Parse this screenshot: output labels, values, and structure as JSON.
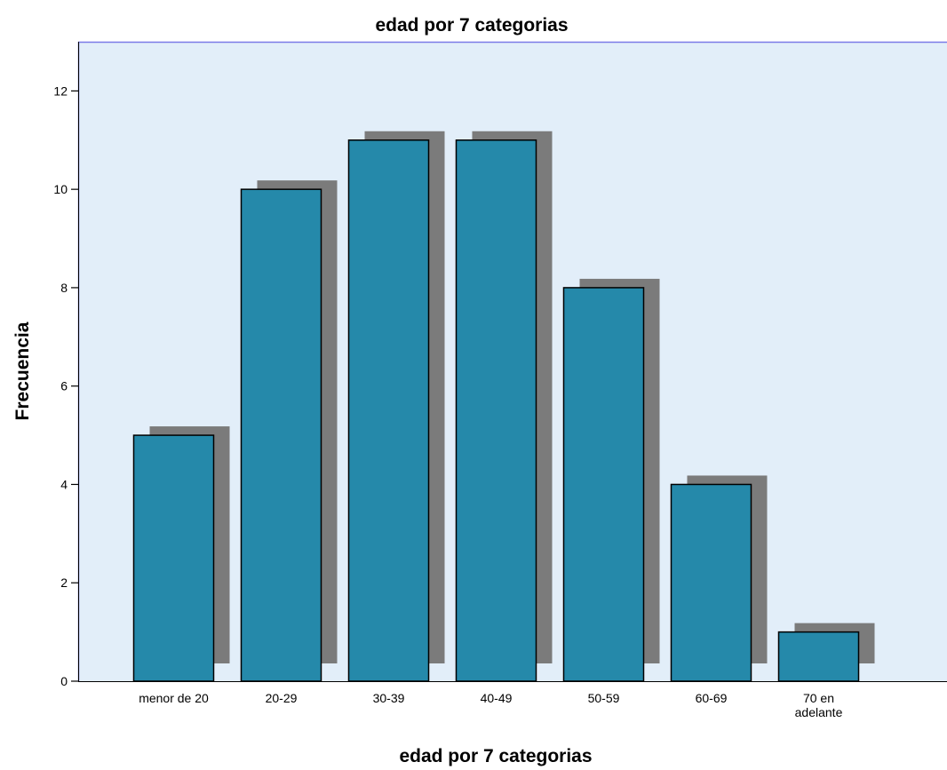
{
  "chart_data": {
    "type": "bar",
    "title": "edad por 7 categorias",
    "xlabel": "edad por 7 categorias",
    "ylabel": "Frecuencia",
    "categories": [
      "menor de 20",
      "20-29",
      "30-39",
      "40-49",
      "50-59",
      "60-69",
      "70 en adelante"
    ],
    "category_lines": [
      [
        "menor de 20"
      ],
      [
        "20-29"
      ],
      [
        "30-39"
      ],
      [
        "40-49"
      ],
      [
        "50-59"
      ],
      [
        "60-69"
      ],
      [
        "70 en",
        "adelante"
      ]
    ],
    "values": [
      5,
      10,
      11,
      11,
      8,
      4,
      1
    ],
    "ylim": [
      0,
      13
    ],
    "yticks": [
      0,
      2,
      4,
      6,
      8,
      10,
      12
    ],
    "grid": false,
    "legend": "none"
  },
  "colors": {
    "plot_background": "#e2eef9",
    "bar_fill": "#2589aa",
    "bar_shadow": "#7b7b7b",
    "plot_border": "#7a7ae8"
  }
}
